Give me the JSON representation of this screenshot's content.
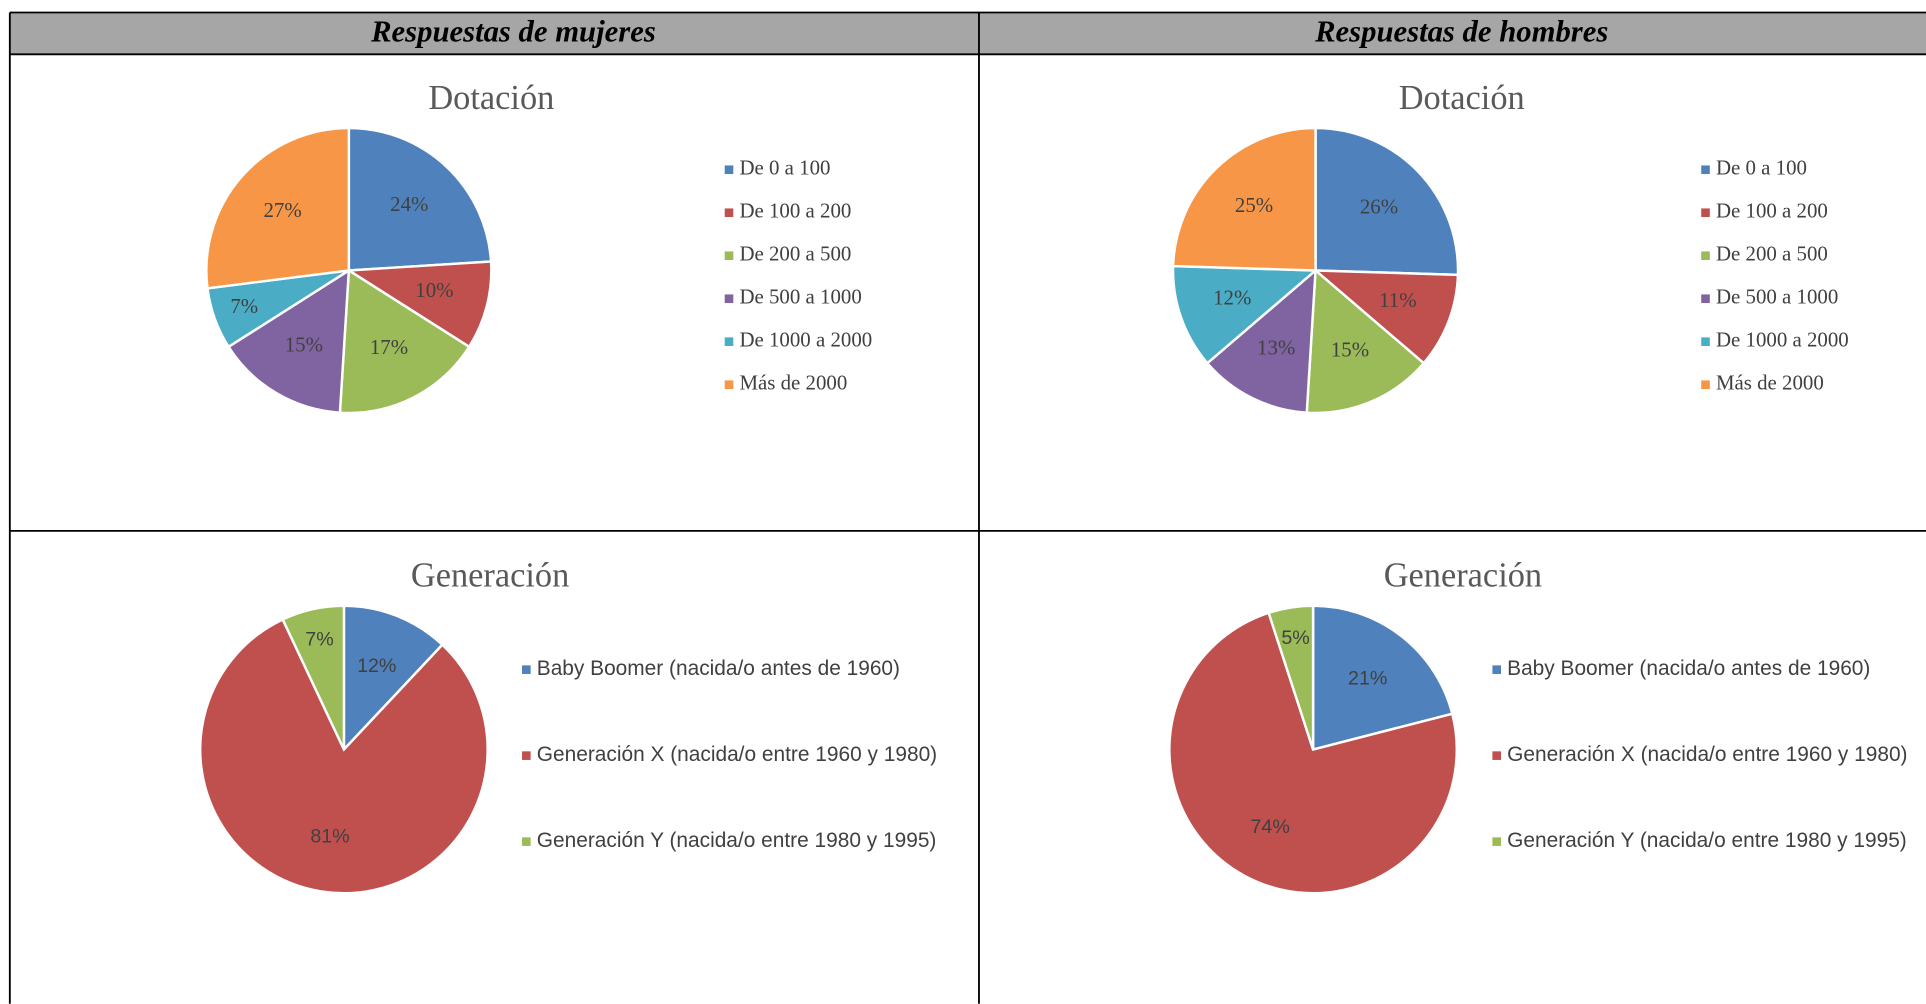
{
  "table": {
    "headers": [
      "Respuestas de mujeres",
      "Respuestas de hombres"
    ]
  },
  "chart_data": [
    {
      "type": "pie",
      "title": "Dotación",
      "categories": [
        "De 0 a 100",
        "De 100 a 200",
        "De 200 a 500",
        "De 500 a 1000",
        "De 1000 a 2000",
        "Más de 2000"
      ],
      "values": [
        24,
        10,
        17,
        15,
        7,
        27
      ],
      "value_labels": [
        "24%",
        "10%",
        "17%",
        "15%",
        "7%",
        "27%"
      ],
      "colors": [
        "#4f81bd",
        "#c0504d",
        "#9bbb59",
        "#8064a2",
        "#4bacc6",
        "#f79646"
      ]
    },
    {
      "type": "pie",
      "title": "Dotación",
      "categories": [
        "De 0 a 100",
        "De 100 a 200",
        "De 200 a 500",
        "De 500 a 1000",
        "De 1000 a 2000",
        "Más de 2000"
      ],
      "values": [
        26,
        11,
        15,
        13,
        12,
        25
      ],
      "value_labels": [
        "26%",
        "11%",
        "15%",
        "13%",
        "12%",
        "25%"
      ],
      "colors": [
        "#4f81bd",
        "#c0504d",
        "#9bbb59",
        "#8064a2",
        "#4bacc6",
        "#f79646"
      ]
    },
    {
      "type": "pie",
      "title": "Generación",
      "categories": [
        "Baby Boomer (nacida/o antes de 1960)",
        "Generación X (nacida/o entre 1960 y 1980)",
        "Generación Y (nacida/o entre 1980 y 1995)"
      ],
      "values": [
        12,
        81,
        7
      ],
      "value_labels": [
        "12%",
        "81%",
        "7%"
      ],
      "colors": [
        "#4f81bd",
        "#c0504d",
        "#9bbb59"
      ]
    },
    {
      "type": "pie",
      "title": "Generación",
      "categories": [
        "Baby Boomer (nacida/o antes de 1960)",
        "Generación X (nacida/o entre 1960 y 1980)",
        "Generación Y (nacida/o entre 1980 y 1995)"
      ],
      "values": [
        21,
        74,
        5
      ],
      "value_labels": [
        "21%",
        "74%",
        "5%"
      ],
      "colors": [
        "#4f81bd",
        "#c0504d",
        "#9bbb59"
      ]
    }
  ]
}
